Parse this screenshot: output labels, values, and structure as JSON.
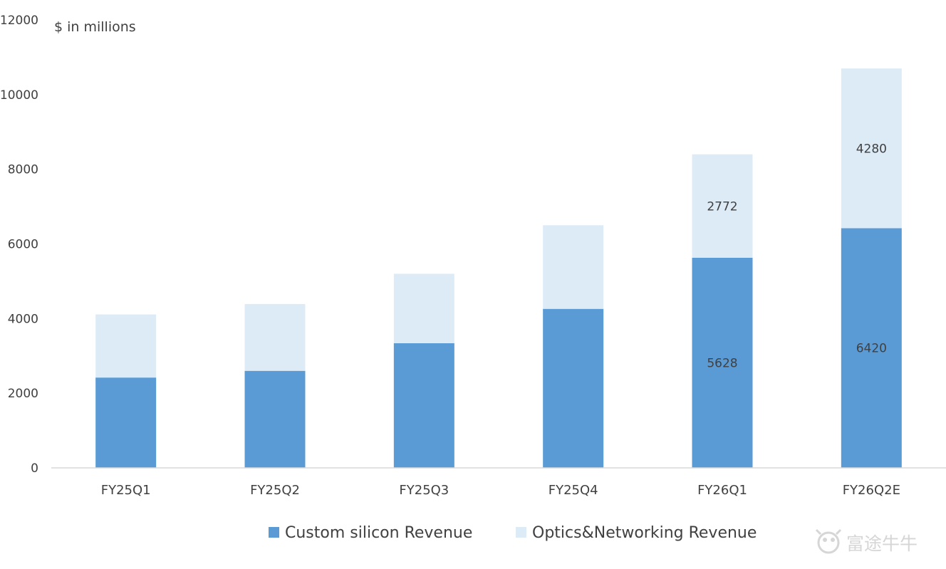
{
  "chart_data": {
    "type": "bar",
    "stacked": true,
    "unit_label": "$ in millions",
    "categories": [
      "FY25Q1",
      "FY25Q2",
      "FY25Q3",
      "FY25Q4",
      "FY26Q1",
      "FY26Q2E"
    ],
    "series": [
      {
        "name": "Custom silicon Revenue",
        "color": "#5b9bd5",
        "values": [
          2420,
          2600,
          3340,
          4260,
          5628,
          6420
        ],
        "labels": [
          "",
          "",
          "",
          "",
          "5628",
          "6420"
        ]
      },
      {
        "name": "Optics&Networking Revenue",
        "color": "#ddebf7",
        "values": [
          1690,
          1790,
          1860,
          2240,
          2772,
          4280
        ],
        "labels": [
          "",
          "",
          "",
          "",
          "2772",
          "4280"
        ]
      }
    ],
    "ylim": [
      0,
      12000
    ],
    "yticks": [
      "0",
      "2000",
      "4000",
      "6000",
      "8000",
      "10000",
      "12000"
    ],
    "ytick_values": [
      0,
      2000,
      4000,
      6000,
      8000,
      10000,
      12000
    ],
    "grid": false,
    "legend_position": "bottom"
  },
  "watermark": {
    "text": "富途牛牛",
    "icon": "futu-bull-icon"
  }
}
